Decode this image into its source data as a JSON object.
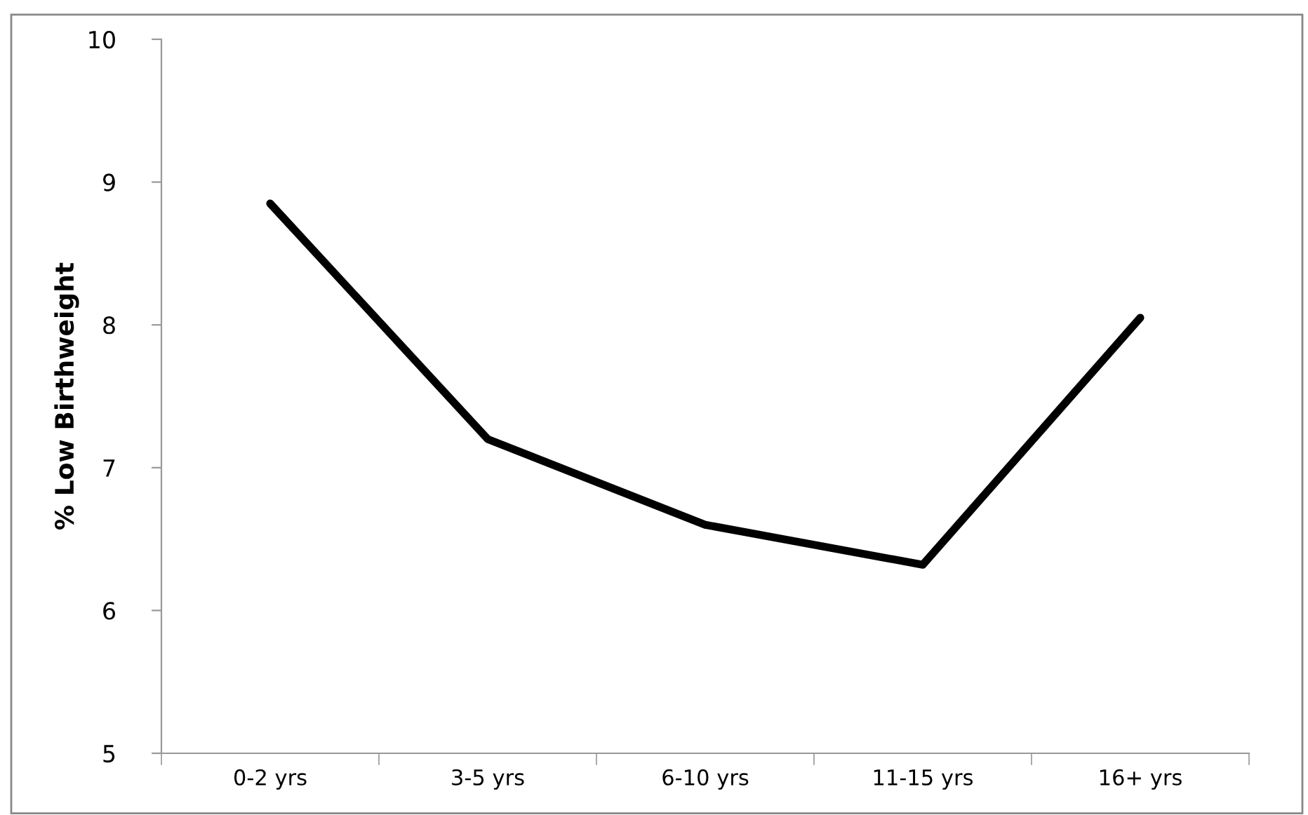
{
  "chart_data": {
    "type": "line",
    "ylabel": "% Low Birthweight",
    "categories": [
      "0-2 yrs",
      "3-5 yrs",
      "6-10 yrs",
      "11-15 yrs",
      "16+ yrs"
    ],
    "series": [
      {
        "color": "#000000",
        "values": [
          8.85,
          7.2,
          6.6,
          6.32,
          8.05
        ]
      }
    ],
    "ylim": [
      5,
      10
    ],
    "yticks": [
      5,
      6,
      7,
      8,
      9,
      10
    ],
    "grid": false,
    "legend": false,
    "marker": "none",
    "line_style": "solid"
  }
}
